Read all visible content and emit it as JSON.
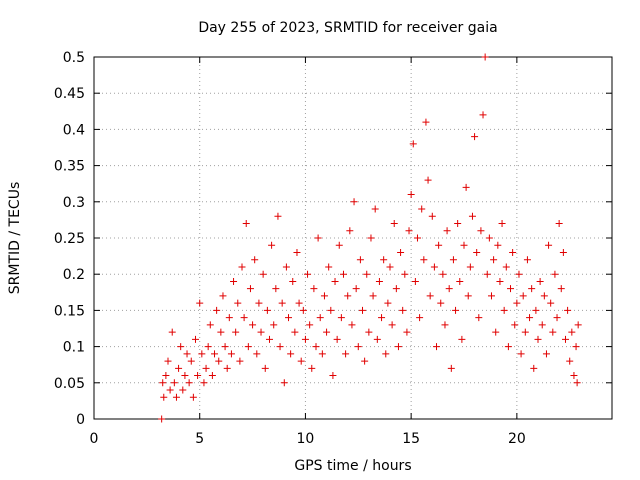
{
  "chart_data": {
    "type": "scatter",
    "title": "Day 255 of 2023, SRMTID for receiver gaia",
    "xlabel": "GPS time / hours",
    "ylabel": "SRMTID / TECUs",
    "xlim": [
      0,
      24.5
    ],
    "ylim": [
      0,
      0.5
    ],
    "x_ticks": [
      0,
      5,
      10,
      15,
      20
    ],
    "y_ticks": [
      0,
      0.05,
      0.1,
      0.15,
      0.2,
      0.25,
      0.3,
      0.35,
      0.4,
      0.45,
      0.5
    ],
    "x_tick_labels": [
      "0",
      "5",
      "10",
      "15",
      "20"
    ],
    "y_tick_labels": [
      "0",
      "0.05",
      "0.1",
      "0.15",
      "0.2",
      "0.25",
      "0.3",
      "0.35",
      "0.4",
      "0.45",
      "0.5"
    ],
    "grid": true,
    "marker": "plus",
    "color": "#e00000",
    "series": [
      {
        "name": "SRMTID",
        "points": [
          [
            3.2,
            0.0
          ],
          [
            3.25,
            0.05
          ],
          [
            3.3,
            0.03
          ],
          [
            3.4,
            0.06
          ],
          [
            3.5,
            0.08
          ],
          [
            3.6,
            0.04
          ],
          [
            3.7,
            0.12
          ],
          [
            3.8,
            0.05
          ],
          [
            3.9,
            0.03
          ],
          [
            4.0,
            0.07
          ],
          [
            4.1,
            0.1
          ],
          [
            4.2,
            0.04
          ],
          [
            4.3,
            0.06
          ],
          [
            4.4,
            0.09
          ],
          [
            4.5,
            0.05
          ],
          [
            4.6,
            0.08
          ],
          [
            4.7,
            0.03
          ],
          [
            4.8,
            0.11
          ],
          [
            4.9,
            0.06
          ],
          [
            5.0,
            0.16
          ],
          [
            5.1,
            0.09
          ],
          [
            5.2,
            0.05
          ],
          [
            5.3,
            0.07
          ],
          [
            5.4,
            0.1
          ],
          [
            5.5,
            0.13
          ],
          [
            5.6,
            0.06
          ],
          [
            5.7,
            0.09
          ],
          [
            5.8,
            0.15
          ],
          [
            5.9,
            0.08
          ],
          [
            6.0,
            0.12
          ],
          [
            6.1,
            0.17
          ],
          [
            6.2,
            0.1
          ],
          [
            6.3,
            0.07
          ],
          [
            6.4,
            0.14
          ],
          [
            6.5,
            0.09
          ],
          [
            6.6,
            0.19
          ],
          [
            6.7,
            0.12
          ],
          [
            6.8,
            0.16
          ],
          [
            6.9,
            0.08
          ],
          [
            7.0,
            0.21
          ],
          [
            7.1,
            0.14
          ],
          [
            7.2,
            0.27
          ],
          [
            7.3,
            0.1
          ],
          [
            7.4,
            0.18
          ],
          [
            7.5,
            0.13
          ],
          [
            7.6,
            0.22
          ],
          [
            7.7,
            0.09
          ],
          [
            7.8,
            0.16
          ],
          [
            7.9,
            0.12
          ],
          [
            8.0,
            0.2
          ],
          [
            8.1,
            0.07
          ],
          [
            8.2,
            0.15
          ],
          [
            8.3,
            0.11
          ],
          [
            8.4,
            0.24
          ],
          [
            8.5,
            0.13
          ],
          [
            8.6,
            0.18
          ],
          [
            8.7,
            0.28
          ],
          [
            8.8,
            0.1
          ],
          [
            8.9,
            0.16
          ],
          [
            9.0,
            0.05
          ],
          [
            9.1,
            0.21
          ],
          [
            9.2,
            0.14
          ],
          [
            9.3,
            0.09
          ],
          [
            9.4,
            0.19
          ],
          [
            9.5,
            0.12
          ],
          [
            9.6,
            0.23
          ],
          [
            9.7,
            0.16
          ],
          [
            9.8,
            0.08
          ],
          [
            9.9,
            0.15
          ],
          [
            10.0,
            0.11
          ],
          [
            10.1,
            0.2
          ],
          [
            10.2,
            0.13
          ],
          [
            10.3,
            0.07
          ],
          [
            10.4,
            0.18
          ],
          [
            10.5,
            0.1
          ],
          [
            10.6,
            0.25
          ],
          [
            10.7,
            0.14
          ],
          [
            10.8,
            0.09
          ],
          [
            10.9,
            0.17
          ],
          [
            11.0,
            0.12
          ],
          [
            11.1,
            0.21
          ],
          [
            11.2,
            0.15
          ],
          [
            11.3,
            0.06
          ],
          [
            11.4,
            0.19
          ],
          [
            11.5,
            0.11
          ],
          [
            11.6,
            0.24
          ],
          [
            11.7,
            0.14
          ],
          [
            11.8,
            0.2
          ],
          [
            11.9,
            0.09
          ],
          [
            12.0,
            0.17
          ],
          [
            12.1,
            0.26
          ],
          [
            12.2,
            0.13
          ],
          [
            12.3,
            0.3
          ],
          [
            12.4,
            0.18
          ],
          [
            12.5,
            0.1
          ],
          [
            12.6,
            0.22
          ],
          [
            12.7,
            0.15
          ],
          [
            12.8,
            0.08
          ],
          [
            12.9,
            0.2
          ],
          [
            13.0,
            0.12
          ],
          [
            13.1,
            0.25
          ],
          [
            13.2,
            0.17
          ],
          [
            13.3,
            0.29
          ],
          [
            13.4,
            0.11
          ],
          [
            13.5,
            0.19
          ],
          [
            13.6,
            0.14
          ],
          [
            13.7,
            0.22
          ],
          [
            13.8,
            0.09
          ],
          [
            13.9,
            0.16
          ],
          [
            14.0,
            0.21
          ],
          [
            14.1,
            0.13
          ],
          [
            14.2,
            0.27
          ],
          [
            14.3,
            0.18
          ],
          [
            14.4,
            0.1
          ],
          [
            14.5,
            0.23
          ],
          [
            14.6,
            0.15
          ],
          [
            14.7,
            0.2
          ],
          [
            14.8,
            0.12
          ],
          [
            14.9,
            0.26
          ],
          [
            15.0,
            0.31
          ],
          [
            15.1,
            0.38
          ],
          [
            15.2,
            0.19
          ],
          [
            15.3,
            0.25
          ],
          [
            15.4,
            0.14
          ],
          [
            15.5,
            0.29
          ],
          [
            15.6,
            0.22
          ],
          [
            15.7,
            0.41
          ],
          [
            15.8,
            0.33
          ],
          [
            15.9,
            0.17
          ],
          [
            16.0,
            0.28
          ],
          [
            16.1,
            0.21
          ],
          [
            16.2,
            0.1
          ],
          [
            16.3,
            0.24
          ],
          [
            16.4,
            0.16
          ],
          [
            16.5,
            0.2
          ],
          [
            16.6,
            0.13
          ],
          [
            16.7,
            0.26
          ],
          [
            16.8,
            0.18
          ],
          [
            16.9,
            0.07
          ],
          [
            17.0,
            0.22
          ],
          [
            17.1,
            0.15
          ],
          [
            17.2,
            0.27
          ],
          [
            17.3,
            0.19
          ],
          [
            17.4,
            0.11
          ],
          [
            17.5,
            0.24
          ],
          [
            17.6,
            0.32
          ],
          [
            17.7,
            0.17
          ],
          [
            17.8,
            0.21
          ],
          [
            17.9,
            0.28
          ],
          [
            18.0,
            0.39
          ],
          [
            18.1,
            0.23
          ],
          [
            18.2,
            0.14
          ],
          [
            18.3,
            0.26
          ],
          [
            18.4,
            0.42
          ],
          [
            18.5,
            0.5
          ],
          [
            18.6,
            0.2
          ],
          [
            18.7,
            0.25
          ],
          [
            18.8,
            0.17
          ],
          [
            18.9,
            0.22
          ],
          [
            19.0,
            0.12
          ],
          [
            19.1,
            0.24
          ],
          [
            19.2,
            0.19
          ],
          [
            19.3,
            0.27
          ],
          [
            19.4,
            0.15
          ],
          [
            19.5,
            0.21
          ],
          [
            19.6,
            0.1
          ],
          [
            19.7,
            0.18
          ],
          [
            19.8,
            0.23
          ],
          [
            19.9,
            0.13
          ],
          [
            20.0,
            0.16
          ],
          [
            20.1,
            0.2
          ],
          [
            20.2,
            0.09
          ],
          [
            20.3,
            0.17
          ],
          [
            20.4,
            0.12
          ],
          [
            20.5,
            0.22
          ],
          [
            20.6,
            0.14
          ],
          [
            20.7,
            0.18
          ],
          [
            20.8,
            0.07
          ],
          [
            20.9,
            0.15
          ],
          [
            21.0,
            0.11
          ],
          [
            21.1,
            0.19
          ],
          [
            21.2,
            0.13
          ],
          [
            21.3,
            0.17
          ],
          [
            21.4,
            0.09
          ],
          [
            21.5,
            0.24
          ],
          [
            21.6,
            0.16
          ],
          [
            21.7,
            0.12
          ],
          [
            21.8,
            0.2
          ],
          [
            21.9,
            0.14
          ],
          [
            22.0,
            0.27
          ],
          [
            22.1,
            0.18
          ],
          [
            22.2,
            0.23
          ],
          [
            22.3,
            0.11
          ],
          [
            22.4,
            0.15
          ],
          [
            22.5,
            0.08
          ],
          [
            22.6,
            0.12
          ],
          [
            22.7,
            0.06
          ],
          [
            22.8,
            0.1
          ],
          [
            22.85,
            0.05
          ],
          [
            22.9,
            0.13
          ]
        ]
      }
    ]
  }
}
